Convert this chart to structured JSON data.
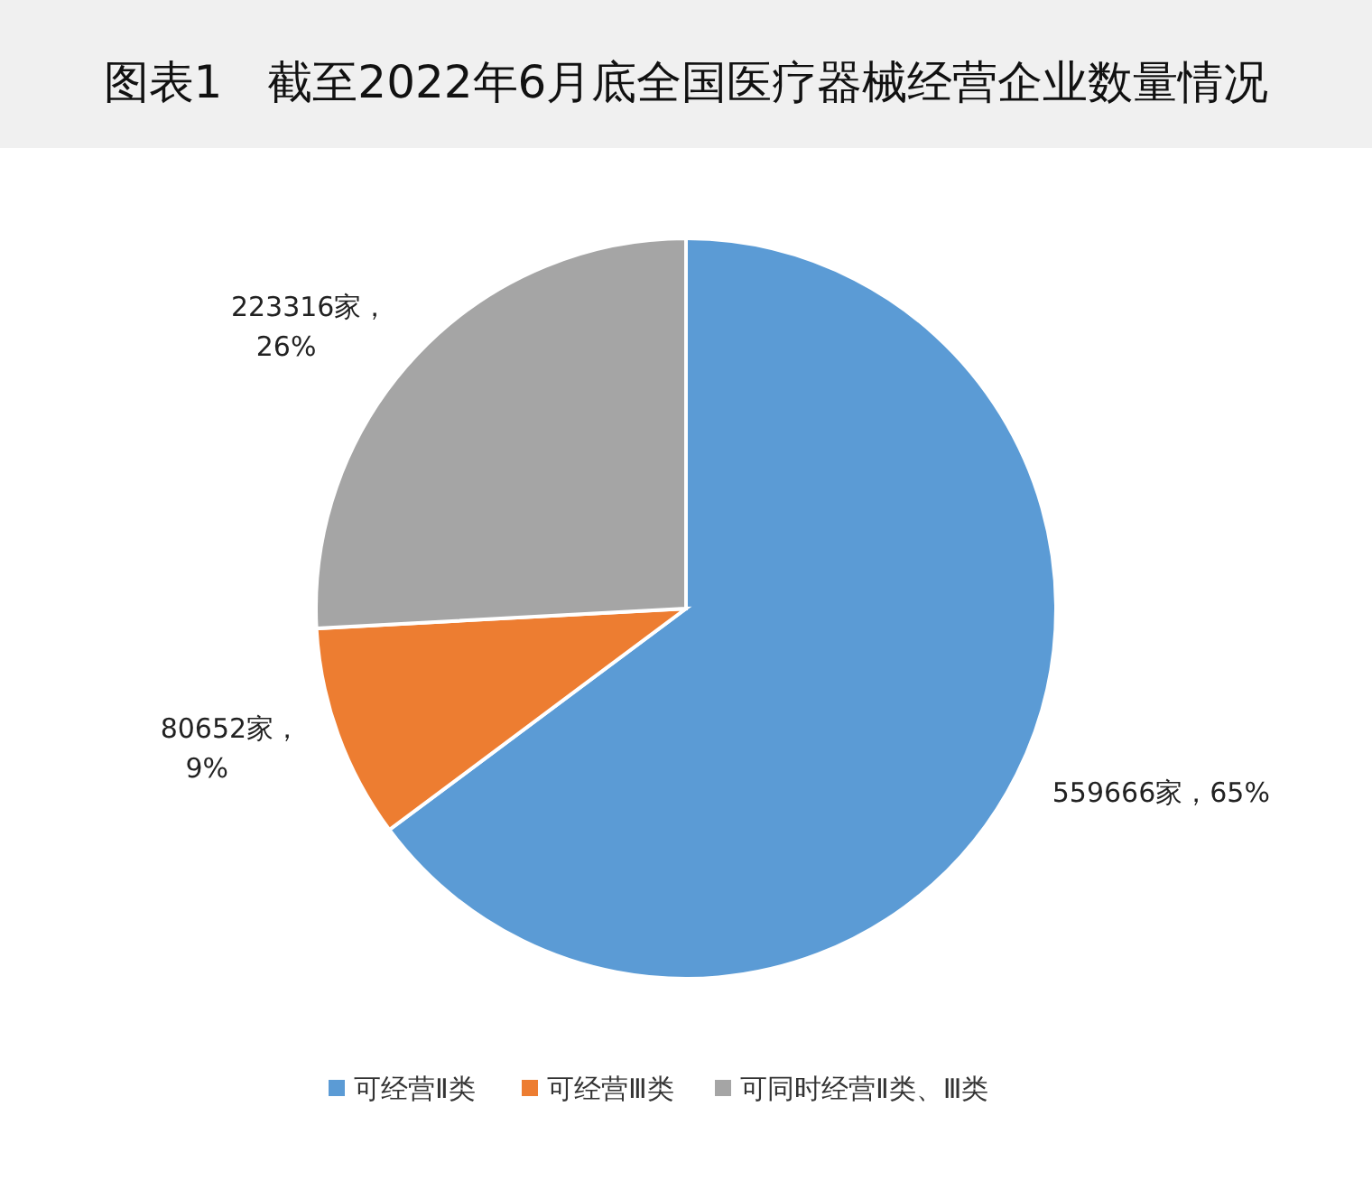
{
  "chart_data": {
    "type": "pie",
    "title": "图表1　截至2022年6月底全国医疗器械经营企业数量情况",
    "categories": [
      "可经营Ⅱ类",
      "可经营Ⅲ类",
      "可同时经营Ⅱ类、Ⅲ类"
    ],
    "values": [
      559666,
      80652,
      223316
    ],
    "colors": [
      "#5b9bd5",
      "#ed7d31",
      "#a5a5a5"
    ],
    "value_labels": [
      "559666家，65%",
      "80652家，9%",
      "223316家，26%"
    ],
    "legend": "bottom"
  }
}
